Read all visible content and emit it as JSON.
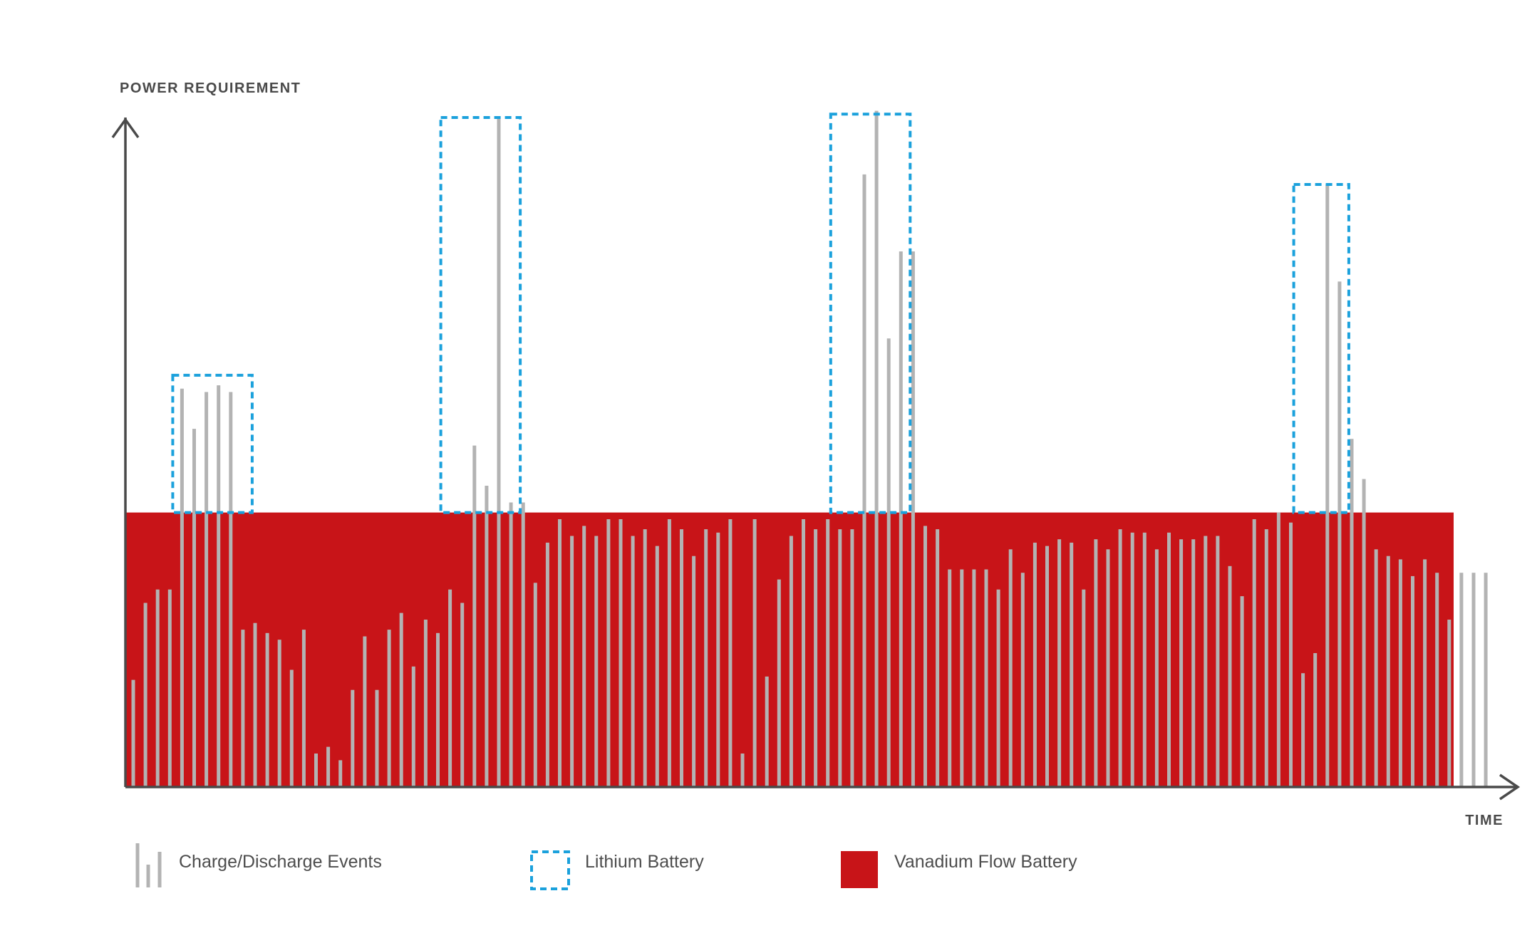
{
  "chart_data": {
    "type": "bar",
    "title": "",
    "ylabel": "POWER REQUIREMENT",
    "xlabel": "TIME",
    "ylim": [
      0,
      100
    ],
    "grid": false,
    "flow_battery_capacity": 41,
    "lithium_peak_groups": [
      {
        "start": 4,
        "end": 9,
        "top": 61.5
      },
      {
        "start": 26,
        "end": 31,
        "top": 100
      },
      {
        "start": 58,
        "end": 63,
        "top": 100.5
      },
      {
        "start": 96,
        "end": 99,
        "top": 90
      }
    ],
    "series": [
      {
        "name": "Charge/Discharge Events",
        "values": [
          16,
          27.5,
          29.5,
          29.5,
          59.5,
          53.5,
          59,
          60,
          59,
          23.5,
          24.5,
          23,
          22,
          17.5,
          23.5,
          5,
          6,
          4,
          14.5,
          22.5,
          14.5,
          23.5,
          26,
          18,
          25,
          23,
          29.5,
          27.5,
          51,
          45,
          100,
          42.5,
          42.5,
          30.5,
          36.5,
          40,
          37.5,
          39,
          37.5,
          40,
          40,
          37.5,
          38.5,
          36,
          40,
          38.5,
          34.5,
          38.5,
          38,
          40,
          5,
          40,
          16.5,
          31,
          37.5,
          40,
          38.5,
          40,
          38.5,
          38.5,
          91.5,
          101,
          67,
          80,
          80,
          39,
          38.5,
          32.5,
          32.5,
          32.5,
          32.5,
          29.5,
          35.5,
          32,
          36.5,
          36,
          37,
          36.5,
          29.5,
          37,
          35.5,
          38.5,
          38,
          38,
          35.5,
          38,
          37,
          37,
          37.5,
          37.5,
          33,
          28.5,
          40,
          38.5,
          41,
          39.5,
          17,
          20,
          90,
          75.5,
          52,
          46,
          35.5,
          34.5,
          34,
          31.5,
          34,
          32,
          25,
          32,
          32,
          32
        ]
      }
    ],
    "legend": {
      "placement": "bottom",
      "items": [
        {
          "label": "Charge/Discharge Events",
          "icon": "bars-icon"
        },
        {
          "label": "Lithium Battery",
          "icon": "dashed-square-icon"
        },
        {
          "label": "Vanadium Flow Battery",
          "icon": "red-square-icon"
        }
      ]
    },
    "colors": {
      "events": "#b3b3b3",
      "lithium": "#1ba1dc",
      "vanadium": "#c81418",
      "axis": "#4a4a4a"
    }
  }
}
